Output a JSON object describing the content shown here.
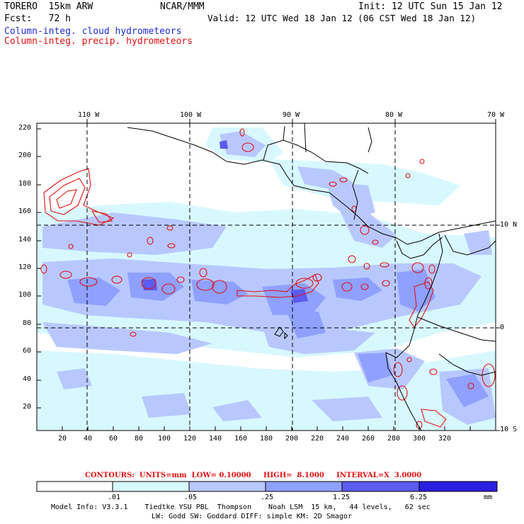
{
  "header": {
    "model": "TORERO  15km ARW",
    "org": "NCAR/MMM",
    "init": "Init: 12 UTC Sun 15 Jan 12",
    "fcst": "Fcst:   72 h",
    "valid": "Valid: 12 UTC Wed 18 Jan 12 (06 CST Wed 18 Jan 12)",
    "field1": "Column-integ. cloud hydrometeors",
    "field2": "Column-integ. precip. hydrometeors"
  },
  "colors": {
    "field1": "#1e2bd8",
    "field2": "#e01010",
    "shade1": "#d8f8ff",
    "shade2": "#b8c8ff",
    "shade3": "#8fa0ff",
    "shade4": "#5c5cf0",
    "shade5": "#3b2ee8",
    "shade6": "#2a1fe0"
  },
  "map": {
    "lon_labels": [
      "110 W",
      "100 W",
      "90 W",
      "80 W",
      "70 W"
    ],
    "lat_labels": [
      "10 N",
      "0",
      "10 S"
    ],
    "x_ticks": [
      "20",
      "40",
      "60",
      "80",
      "100",
      "120",
      "140",
      "160",
      "180",
      "200",
      "220",
      "240",
      "260",
      "280",
      "300",
      "320"
    ],
    "y_ticks": [
      "20",
      "40",
      "60",
      "80",
      "100",
      "120",
      "140",
      "160",
      "180",
      "200",
      "220"
    ],
    "x_range": [
      1,
      334
    ],
    "y_range": [
      1,
      224
    ]
  },
  "contour_info": {
    "label": "CONTOURS:  UNITS=mm  LOW= 0.10000     HIGH=  8.1000     INTERVAL=X  3.0000"
  },
  "colorbar": {
    "levels": [
      ".01",
      ".05",
      ".25",
      "1.25",
      "6.25"
    ],
    "units": "mm"
  },
  "footer": {
    "line1": "Model Info: V3.3.1    Tiedtke YSU PBL  Thompson    Noah LSM  15 km,   44 levels,   62 sec",
    "line2": "LW: Godd SW: Goddard DIFF: simple KM: 2D Smagor"
  }
}
